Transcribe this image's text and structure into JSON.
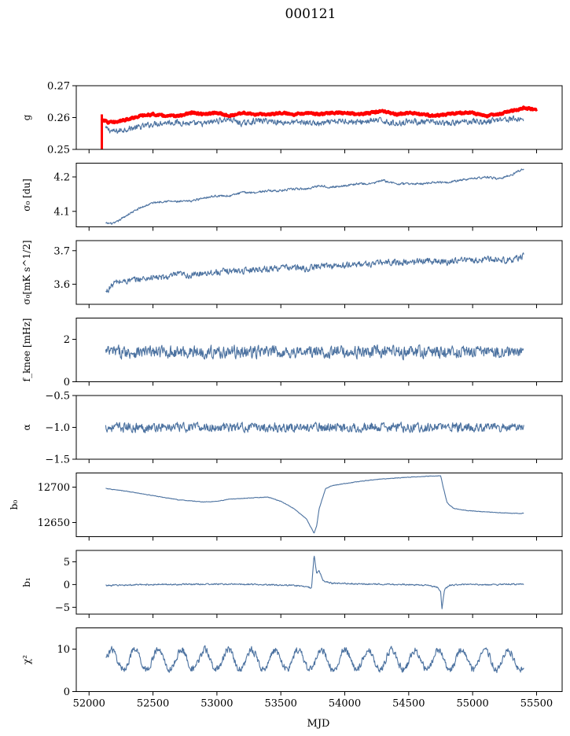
{
  "figure": {
    "title": "000121",
    "xlabel": "MJD"
  },
  "chart_data": {
    "type": "line",
    "xlim": [
      51900,
      55700
    ],
    "xticks": [
      52000,
      52500,
      53000,
      53500,
      54000,
      54500,
      55000,
      55500
    ],
    "xtick_labels": [
      "52000",
      "52500",
      "53000",
      "53500",
      "54000",
      "54500",
      "55000",
      "55500"
    ],
    "line_color": "#4c72a0",
    "highlight_color": "#ff0000",
    "panels": [
      {
        "id": "g",
        "ylabel": "g",
        "ylim": [
          0.25,
          0.27
        ],
        "yticks": [
          0.25,
          0.26,
          0.27
        ],
        "ytick_labels": [
          "0.25",
          "0.26",
          "0.27"
        ],
        "series": [
          {
            "style": "blue",
            "x": [
              52130,
              52200,
              52300,
              52400,
              52500,
              52600,
              52700,
              52800,
              52900,
              53000,
              53100,
              53200,
              53300,
              53400,
              53500,
              53600,
              53700,
              53800,
              53900,
              54000,
              54100,
              54200,
              54300,
              54400,
              54500,
              54600,
              54700,
              54800,
              54900,
              55000,
              55100,
              55200,
              55300,
              55400
            ],
            "y": [
              0.2565,
              0.2555,
              0.2565,
              0.257,
              0.258,
              0.2585,
              0.2585,
              0.258,
              0.258,
              0.259,
              0.2595,
              0.258,
              0.259,
              0.259,
              0.2585,
              0.2585,
              0.2585,
              0.258,
              0.2585,
              0.259,
              0.2585,
              0.259,
              0.259,
              0.258,
              0.259,
              0.2585,
              0.2585,
              0.258,
              0.2585,
              0.259,
              0.2585,
              0.2595,
              0.2595,
              0.2595
            ],
            "noise": 0.0009
          },
          {
            "style": "red",
            "x": [
              52100,
              52150,
              52200,
              52300,
              52400,
              52500,
              52600,
              52700,
              52800,
              52900,
              53000,
              53100,
              53200,
              53300,
              53400,
              53500,
              53600,
              53700,
              53800,
              53900,
              54000,
              54100,
              54200,
              54300,
              54400,
              54500,
              54600,
              54700,
              54800,
              54900,
              55000,
              55100,
              55200,
              55300,
              55400,
              55500
            ],
            "y": [
              0.2595,
              0.2585,
              0.2585,
              0.2595,
              0.2605,
              0.261,
              0.2605,
              0.2605,
              0.2615,
              0.261,
              0.2615,
              0.2605,
              0.2615,
              0.261,
              0.261,
              0.2615,
              0.261,
              0.2615,
              0.261,
              0.2615,
              0.2615,
              0.261,
              0.2615,
              0.262,
              0.261,
              0.2615,
              0.261,
              0.2605,
              0.261,
              0.2615,
              0.2615,
              0.2605,
              0.261,
              0.262,
              0.263,
              0.2625
            ],
            "noise": 0.0003,
            "spike": {
              "x": 52100,
              "y_from": 0.25,
              "y_to": 0.261
            }
          }
        ]
      },
      {
        "id": "sigma0-du",
        "ylabel": "σ₀ [du]",
        "ylim": [
          4.055,
          4.24
        ],
        "yticks": [
          4.1,
          4.2
        ],
        "ytick_labels": [
          "4.1",
          "4.2"
        ],
        "series": [
          {
            "style": "blue",
            "x": [
              52130,
              52200,
              52300,
              52400,
              52500,
              52600,
              52700,
              52800,
              52900,
              53000,
              53100,
              53200,
              53300,
              53400,
              53500,
              53600,
              53700,
              53800,
              53900,
              54000,
              54100,
              54200,
              54300,
              54400,
              54500,
              54600,
              54700,
              54800,
              54900,
              55000,
              55100,
              55200,
              55300,
              55400
            ],
            "y": [
              4.065,
              4.065,
              4.09,
              4.11,
              4.125,
              4.13,
              4.128,
              4.13,
              4.14,
              4.145,
              4.145,
              4.155,
              4.155,
              4.16,
              4.16,
              4.165,
              4.165,
              4.175,
              4.17,
              4.175,
              4.18,
              4.18,
              4.19,
              4.18,
              4.18,
              4.18,
              4.185,
              4.185,
              4.19,
              4.195,
              4.2,
              4.195,
              4.205,
              4.225
            ],
            "noise": 0.003
          }
        ]
      },
      {
        "id": "sigma0-mk",
        "ylabel": "σ₀[mK s^1/2]",
        "ylim": [
          3.54,
          3.73
        ],
        "yticks": [
          3.6,
          3.7
        ],
        "ytick_labels": [
          "3.6",
          "3.7"
        ],
        "series": [
          {
            "style": "blue",
            "x": [
              52130,
              52200,
              52300,
              52400,
              52500,
              52600,
              52700,
              52800,
              52900,
              53000,
              53100,
              53200,
              53300,
              53400,
              53500,
              53600,
              53700,
              53800,
              53900,
              54000,
              54100,
              54200,
              54300,
              54400,
              54500,
              54600,
              54700,
              54800,
              54900,
              55000,
              55100,
              55200,
              55300,
              55400
            ],
            "y": [
              3.575,
              3.605,
              3.61,
              3.615,
              3.62,
              3.62,
              3.63,
              3.625,
              3.635,
              3.635,
              3.64,
              3.64,
              3.645,
              3.645,
              3.65,
              3.65,
              3.645,
              3.655,
              3.655,
              3.655,
              3.66,
              3.66,
              3.665,
              3.665,
              3.665,
              3.67,
              3.67,
              3.665,
              3.675,
              3.67,
              3.675,
              3.675,
              3.67,
              3.685
            ],
            "noise": 0.009
          }
        ]
      },
      {
        "id": "fknee",
        "ylabel": "f_knee [mHz]",
        "ylim": [
          0,
          3
        ],
        "yticks": [
          0,
          2
        ],
        "ytick_labels": [
          "0",
          "2"
        ],
        "series": [
          {
            "style": "blue",
            "x": [
              52130,
              55400
            ],
            "y": [
              1.4,
              1.4
            ],
            "noise": 0.28
          }
        ]
      },
      {
        "id": "alpha",
        "ylabel": "α",
        "ylim": [
          -1.5,
          -0.5
        ],
        "yticks": [
          -1.5,
          -1.0,
          -0.5
        ],
        "ytick_labels": [
          "−1.5",
          "−1.0",
          "−0.5"
        ],
        "series": [
          {
            "style": "blue",
            "x": [
              52130,
              55400
            ],
            "y": [
              -1.0,
              -1.0
            ],
            "noise": 0.07
          }
        ]
      },
      {
        "id": "b0",
        "ylabel": "b₀",
        "ylim": [
          12630,
          12720
        ],
        "yticks": [
          12650,
          12700
        ],
        "ytick_labels": [
          "12650",
          "12700"
        ],
        "series": [
          {
            "style": "blue",
            "x": [
              52130,
              52300,
              52500,
              52700,
              52900,
              53000,
              53100,
              53300,
              53400,
              53500,
              53600,
              53700,
              53760,
              53780,
              53800,
              53850,
              53900,
              54000,
              54200,
              54400,
              54600,
              54700,
              54750,
              54770,
              54800,
              54850,
              54950,
              55100,
              55300,
              55400
            ],
            "y": [
              12698,
              12694,
              12688,
              12682,
              12679,
              12680,
              12683,
              12685,
              12686,
              12680,
              12670,
              12655,
              12635,
              12645,
              12670,
              12698,
              12702,
              12705,
              12710,
              12713,
              12715,
              12716,
              12716,
              12700,
              12678,
              12670,
              12667,
              12665,
              12663,
              12663
            ],
            "noise": 0.4
          }
        ]
      },
      {
        "id": "b1",
        "ylabel": "b₁",
        "ylim": [
          -6.5,
          7.5
        ],
        "yticks": [
          -5,
          0,
          5
        ],
        "ytick_labels": [
          "−5",
          "0",
          "5"
        ],
        "series": [
          {
            "style": "blue",
            "x": [
              52130,
              52500,
              53000,
              53400,
              53600,
              53700,
              53740,
              53760,
              53780,
              53800,
              53830,
              53900,
              54200,
              54500,
              54650,
              54720,
              54750,
              54760,
              54780,
              54820,
              54900,
              55200,
              55400
            ],
            "y": [
              -0.2,
              0.0,
              0.1,
              0.0,
              -0.2,
              -0.4,
              -0.8,
              6.5,
              2.5,
              3.0,
              0.8,
              0.3,
              0.1,
              0.0,
              -0.2,
              -0.5,
              -1.5,
              -5.5,
              -1.0,
              -0.2,
              0.0,
              0.0,
              0.1
            ],
            "noise": 0.15
          }
        ]
      },
      {
        "id": "chi2",
        "ylabel": "χ²",
        "ylim": [
          0,
          15
        ],
        "yticks": [
          0,
          10
        ],
        "ytick_labels": [
          "0",
          "10"
        ],
        "series": [
          {
            "style": "blue",
            "x": [
              52130,
              55400
            ],
            "y": [
              7.5,
              7.5
            ],
            "noise": 0.8,
            "oscillation": {
              "amplitude": 2.3,
              "period": 182.6
            }
          }
        ]
      }
    ]
  }
}
